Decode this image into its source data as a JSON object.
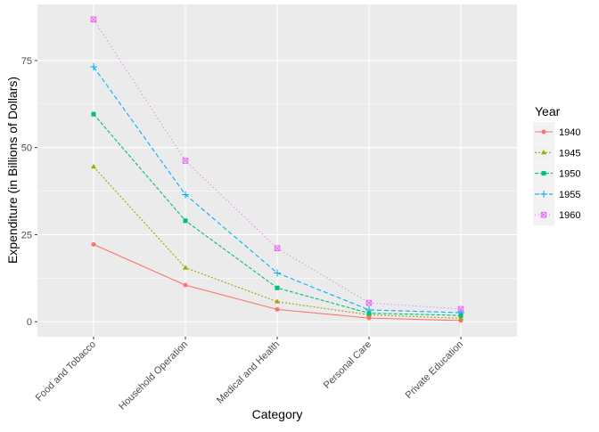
{
  "chart_data": {
    "type": "line",
    "xlabel": "Category",
    "ylabel": "Expenditure (in Billions of Dollars)",
    "categories": [
      "Food and Tobacco",
      "Household Operation",
      "Medical and Health",
      "Personal Care",
      "Private Education"
    ],
    "yticks": [
      0,
      25,
      50,
      75
    ],
    "ylim": [
      -4.3,
      91.1
    ],
    "grid": true,
    "legend": {
      "title": "Year",
      "position": "right"
    },
    "series": [
      {
        "name": "1940",
        "color": "#F8766D",
        "linetype": "solid",
        "shape": "circle",
        "values": [
          22.2,
          10.5,
          3.53,
          1.04,
          0.341
        ]
      },
      {
        "name": "1945",
        "color": "#A3A500",
        "linetype": "dotted",
        "shape": "triangle",
        "values": [
          44.5,
          15.5,
          5.76,
          1.98,
          0.974
        ]
      },
      {
        "name": "1950",
        "color": "#00BF7D",
        "linetype": "dashed",
        "shape": "square",
        "values": [
          59.6,
          29.0,
          9.71,
          2.45,
          1.8
        ]
      },
      {
        "name": "1955",
        "color": "#00B0F6",
        "linetype": "longdash",
        "shape": "plus",
        "values": [
          73.2,
          36.5,
          14.0,
          3.4,
          2.6
        ]
      },
      {
        "name": "1960",
        "color": "#E76BF3",
        "linetype": "dotdash",
        "shape": "square-cross",
        "values": [
          86.8,
          46.2,
          21.1,
          5.4,
          3.64
        ]
      }
    ]
  }
}
